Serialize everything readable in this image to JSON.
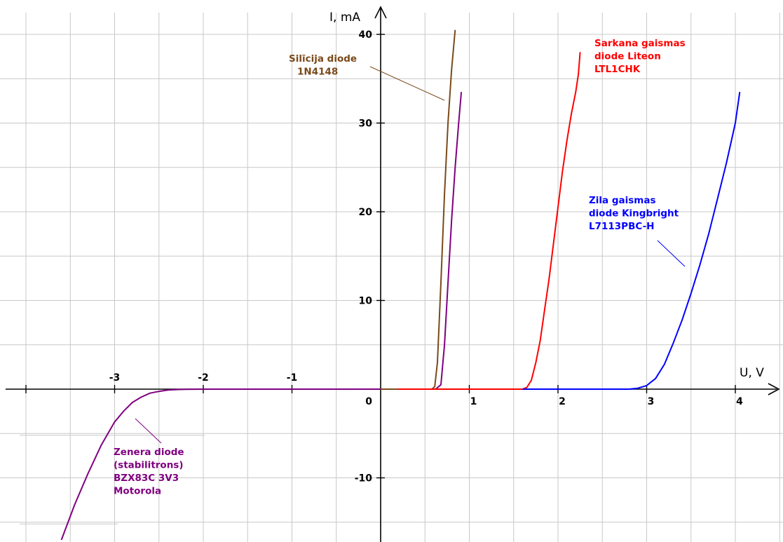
{
  "chart_data": {
    "type": "line",
    "title": "",
    "xlabel": "U, V",
    "ylabel": "I, mA",
    "xlim": [
      -4.1,
      4.65
    ],
    "ylim": [
      -17.2,
      43.5
    ],
    "grid": true,
    "x_ticks": [
      -3,
      -2,
      -1,
      1,
      2,
      3,
      4
    ],
    "x_tick_labels": [
      "-3",
      "-2",
      "-1",
      "1",
      "2",
      "3",
      "4"
    ],
    "y_ticks": [
      -10,
      10,
      20,
      30,
      40
    ],
    "y_tick_labels": [
      "-10",
      "10",
      "20",
      "30",
      "40"
    ],
    "origin_label": "0",
    "series": [
      {
        "name": "Zenera diode (stabilitrons) BZX83C 3V3 Motorola",
        "color": "#800080",
        "x": [
          -3.6,
          -3.45,
          -3.3,
          -3.15,
          -3.0,
          -2.9,
          -2.8,
          -2.7,
          -2.6,
          -2.5,
          -2.4,
          -2.3,
          -2.2,
          -2.0,
          -1.6,
          -1.0,
          0.0,
          0.3,
          0.62,
          0.68,
          0.72,
          0.76,
          0.8,
          0.84,
          0.88,
          0.91
        ],
        "y": [
          -17,
          -13,
          -9.5,
          -6.3,
          -3.7,
          -2.5,
          -1.5,
          -0.9,
          -0.45,
          -0.25,
          -0.1,
          -0.05,
          -0.02,
          0,
          0,
          0,
          0,
          0,
          0,
          0.5,
          5,
          12,
          19,
          25,
          30,
          33.5
        ]
      },
      {
        "name": "Silīcija diode 1N4148",
        "color": "#7a4a1a",
        "x": [
          0.0,
          0.3,
          0.5,
          0.58,
          0.61,
          0.64,
          0.68,
          0.72,
          0.76,
          0.8,
          0.84
        ],
        "y": [
          0,
          0,
          0,
          0,
          0.3,
          3,
          12,
          22,
          30,
          36,
          40.5
        ]
      },
      {
        "name": "Sarkana gaismas diode Liteon LTL1CHK",
        "color": "#ff0000",
        "x": [
          0.2,
          1.0,
          1.6,
          1.65,
          1.7,
          1.75,
          1.8,
          1.85,
          1.9,
          1.95,
          2.0,
          2.05,
          2.1,
          2.15,
          2.2,
          2.23,
          2.25
        ],
        "y": [
          0,
          0,
          0,
          0.2,
          1,
          3,
          5.5,
          9,
          12.5,
          16.5,
          20.5,
          24.5,
          28,
          31,
          33.5,
          35.5,
          38
        ]
      },
      {
        "name": "Zila gaismas diode Kingbright L7113PBC-H",
        "color": "#0000ff",
        "x": [
          1.6,
          2.8,
          2.9,
          3.0,
          3.1,
          3.2,
          3.3,
          3.4,
          3.5,
          3.6,
          3.7,
          3.8,
          3.9,
          4.0,
          4.05
        ],
        "y": [
          0,
          0,
          0.1,
          0.4,
          1.2,
          2.8,
          5.2,
          7.8,
          10.8,
          14,
          17.5,
          21.5,
          25.5,
          30,
          33.5
        ]
      }
    ],
    "annotations": [
      {
        "lines": [
          "Silīcija diode",
          "1N4148"
        ],
        "color": "#7a4a1a"
      },
      {
        "lines": [
          "Sarkana gaismas",
          "diode Liteon",
          "LTL1CHK"
        ],
        "color": "#ff0000"
      },
      {
        "lines": [
          "Zila gaismas",
          "diode Kingbright",
          "L7113PBC-H"
        ],
        "color": "#0000ff"
      },
      {
        "lines": [
          "Zenera diode",
          "(stabilitrons)",
          "BZX83C 3V3",
          "Motorola"
        ],
        "color": "#800080"
      }
    ]
  }
}
